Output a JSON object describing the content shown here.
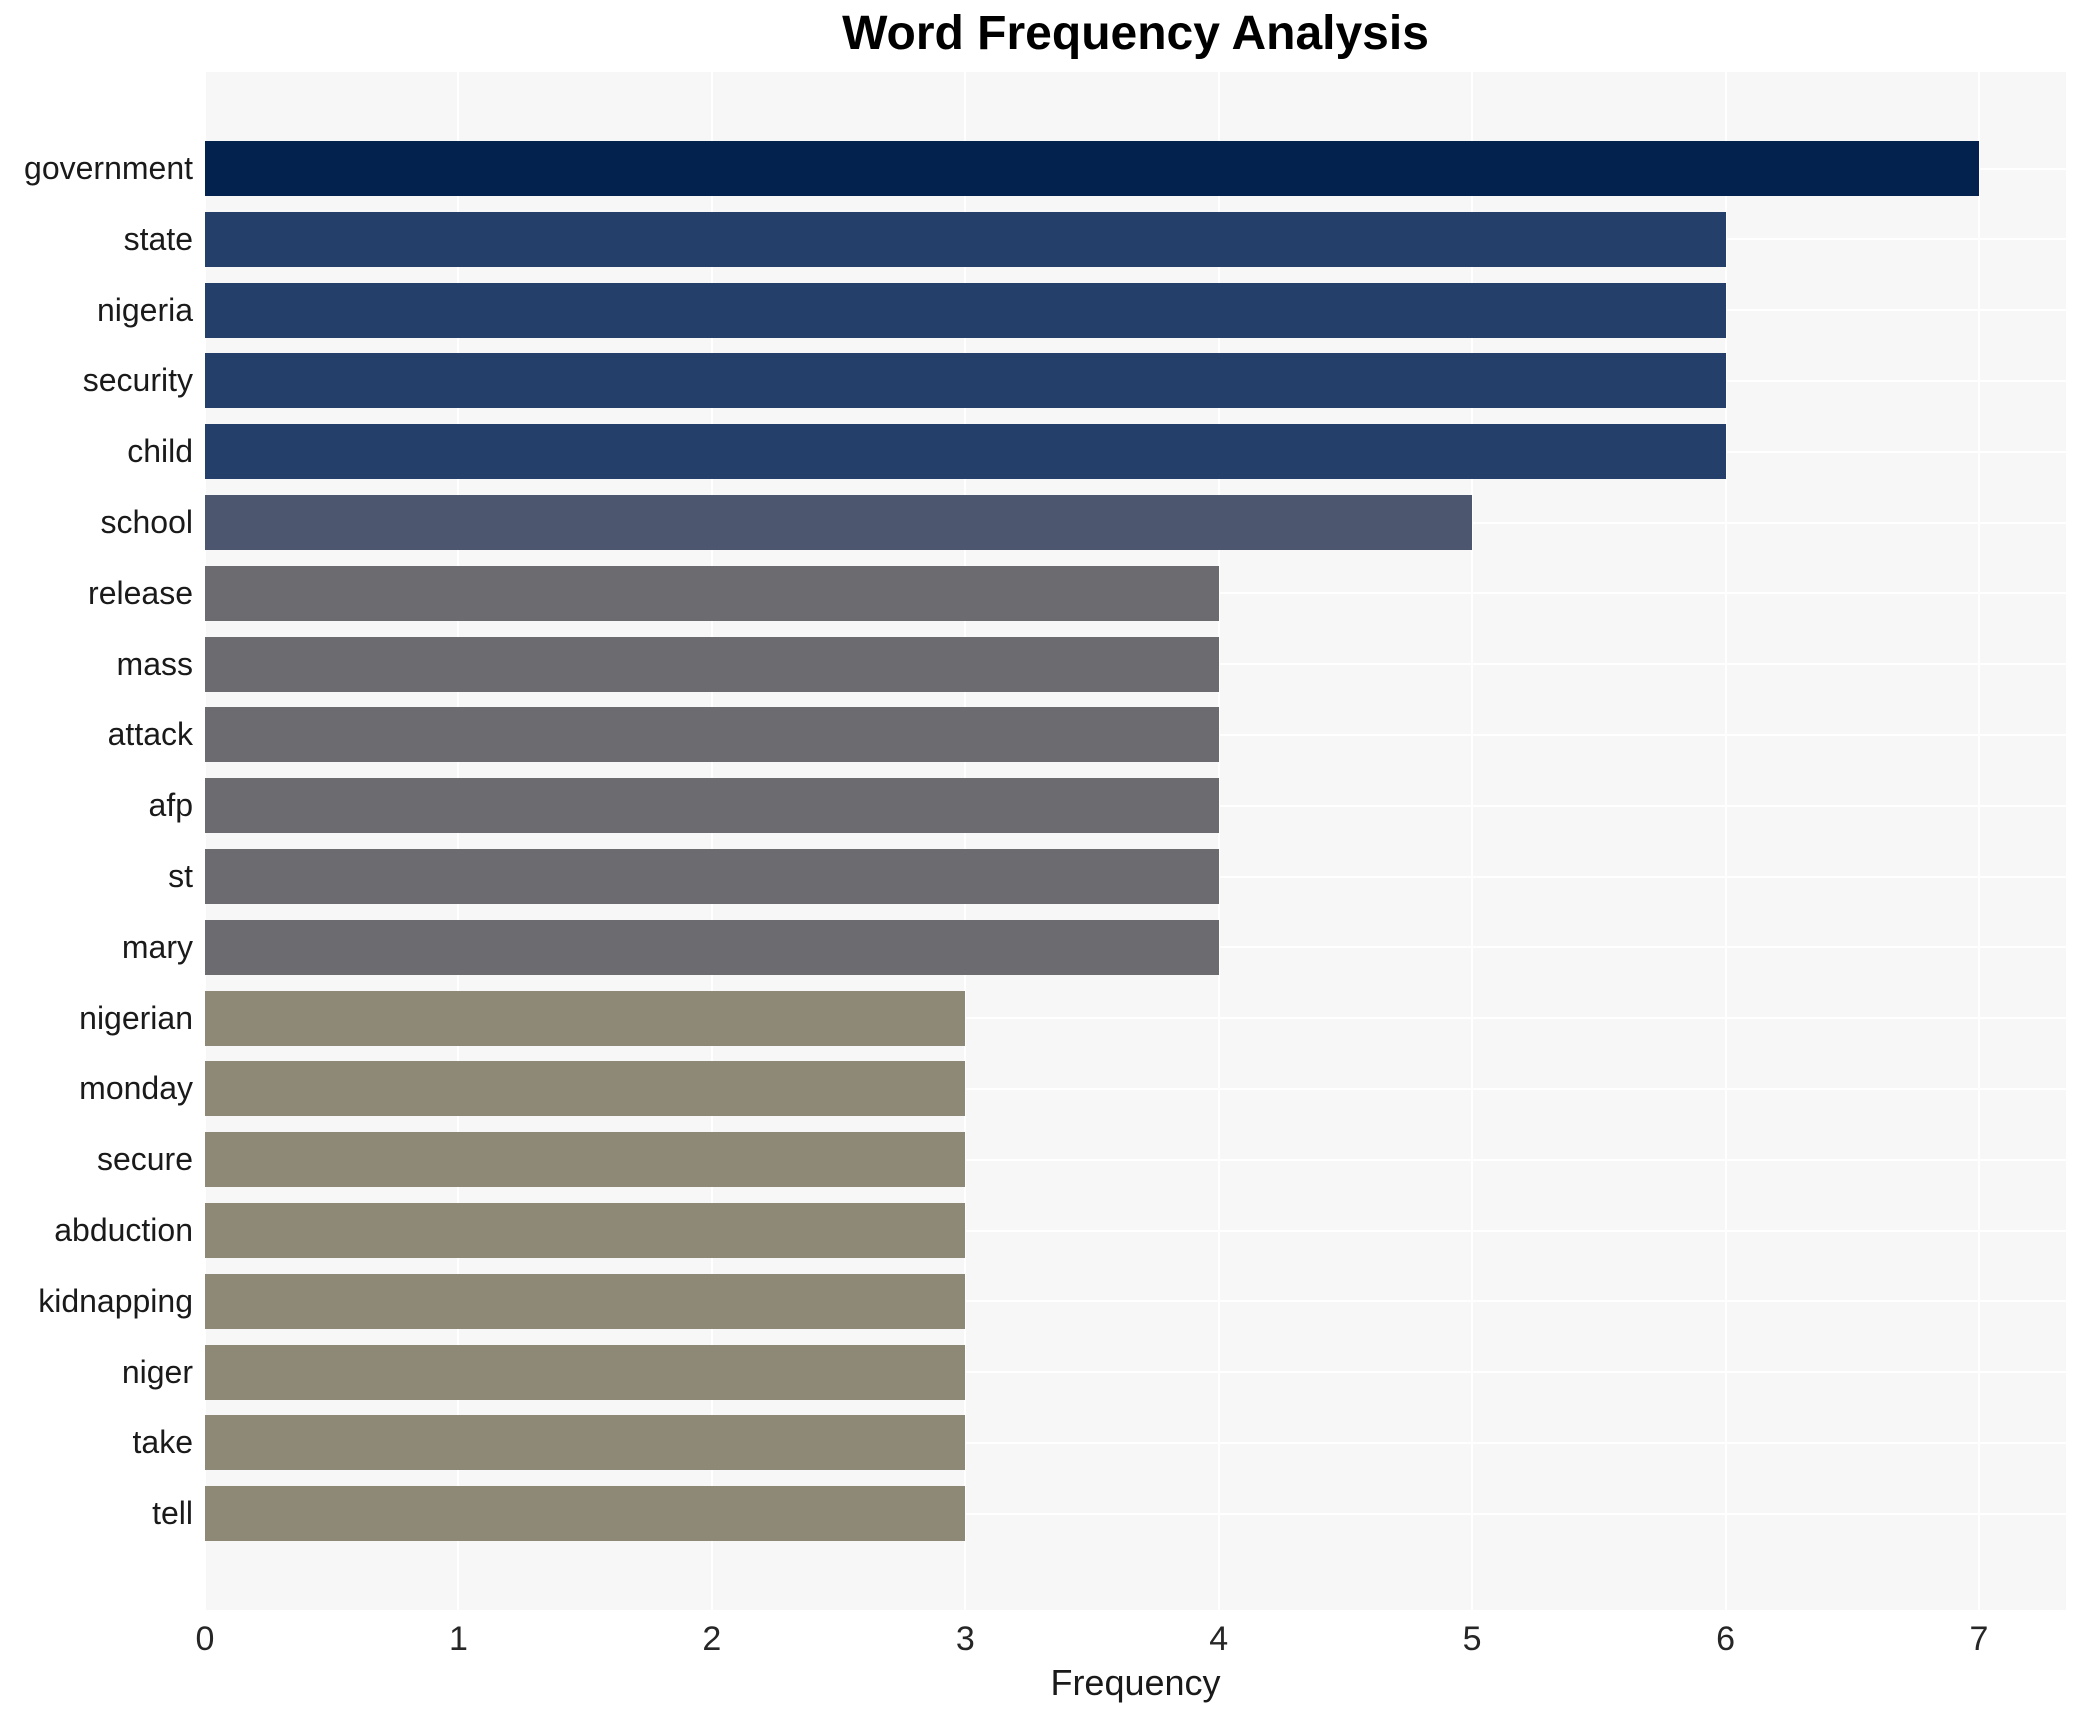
{
  "chart_data": {
    "type": "bar",
    "orientation": "horizontal",
    "title": "Word Frequency Analysis",
    "xlabel": "Frequency",
    "ylabel": "",
    "xlim": [
      0,
      7
    ],
    "xticks": [
      0,
      1,
      2,
      3,
      4,
      5,
      6,
      7
    ],
    "grid": true,
    "legend": false,
    "categories": [
      "government",
      "state",
      "nigeria",
      "security",
      "child",
      "school",
      "release",
      "mass",
      "attack",
      "afp",
      "st",
      "mary",
      "nigerian",
      "monday",
      "secure",
      "abduction",
      "kidnapping",
      "niger",
      "take",
      "tell"
    ],
    "values": [
      7,
      6,
      6,
      6,
      6,
      5,
      4,
      4,
      4,
      4,
      4,
      4,
      3,
      3,
      3,
      3,
      3,
      3,
      3,
      3
    ],
    "colors_by_value": {
      "7": "#03234e",
      "6": "#253f6b",
      "5": "#4d566f",
      "4": "#6c6c70",
      "3": "#8e8876"
    },
    "plot_background": "#f7f7f7",
    "figure_background": "#ffffff",
    "gridline_color": "#ffffff",
    "text_color": "#1a1a1a"
  }
}
